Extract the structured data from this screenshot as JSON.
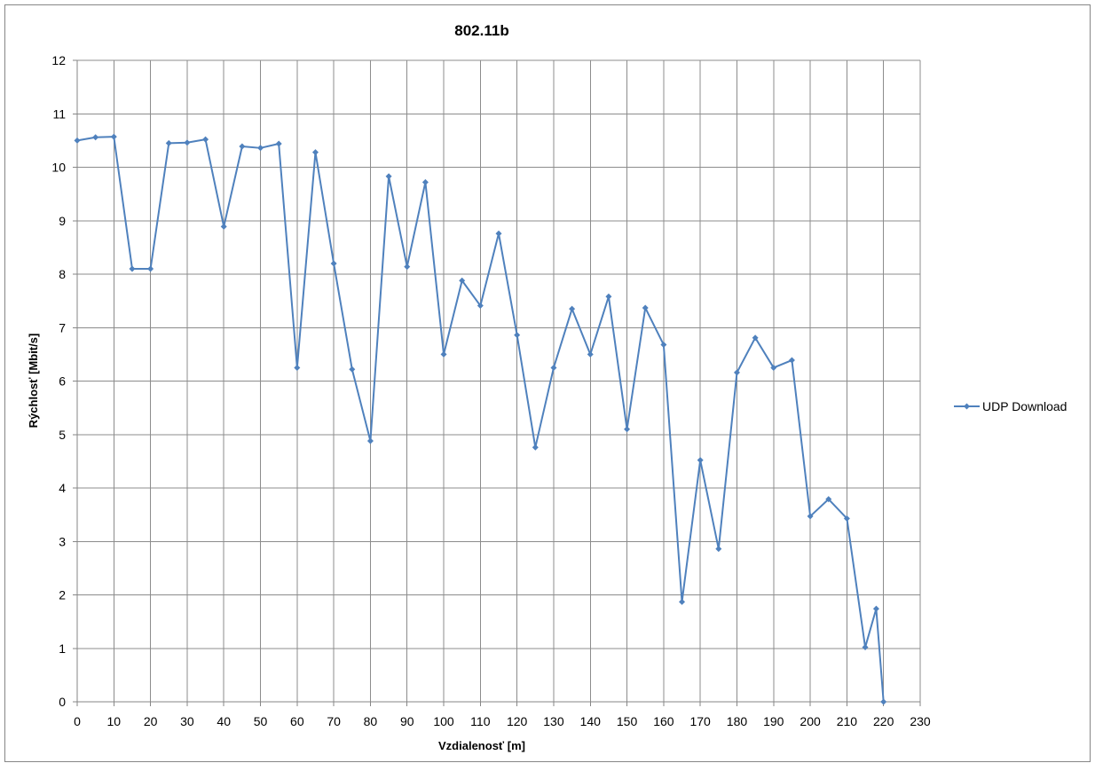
{
  "chart_data": {
    "type": "line",
    "title": "802.11b",
    "xlabel": "Vzdialenosť [m]",
    "ylabel": "Rýchlosť [Mbit/s]",
    "xlim": [
      0,
      230
    ],
    "ylim": [
      0,
      12
    ],
    "x_ticks": [
      "0",
      "10",
      "20",
      "30",
      "40",
      "50",
      "60",
      "70",
      "80",
      "90",
      "100",
      "110",
      "120",
      "130",
      "140",
      "150",
      "160",
      "170",
      "180",
      "190",
      "200",
      "210",
      "220",
      "230"
    ],
    "y_ticks": [
      "0",
      "1",
      "2",
      "3",
      "4",
      "5",
      "6",
      "7",
      "8",
      "9",
      "10",
      "11",
      "12"
    ],
    "grid": true,
    "legend_position": "right",
    "series": [
      {
        "name": "UDP Download",
        "color": "#4f81bd",
        "marker": "diamond",
        "x": [
          0,
          5,
          10,
          15,
          20,
          25,
          30,
          35,
          40,
          45,
          50,
          55,
          60,
          65,
          70,
          75,
          80,
          85,
          90,
          95,
          100,
          105,
          110,
          115,
          120,
          125,
          130,
          135,
          140,
          145,
          150,
          155,
          160,
          165,
          170,
          175,
          180,
          185,
          190,
          195,
          200,
          205,
          210,
          215,
          218,
          220
        ],
        "y": [
          10.5,
          10.56,
          10.57,
          8.1,
          8.1,
          10.45,
          10.46,
          10.52,
          8.89,
          10.39,
          10.36,
          10.44,
          6.25,
          10.28,
          8.2,
          6.22,
          4.88,
          9.83,
          8.14,
          9.72,
          6.5,
          7.88,
          7.41,
          8.76,
          6.86,
          4.76,
          6.25,
          7.35,
          6.5,
          7.58,
          5.1,
          7.37,
          6.68,
          1.87,
          4.52,
          2.86,
          6.16,
          6.81,
          6.25,
          6.39,
          3.47,
          3.79,
          3.43,
          1.02,
          1.74,
          0.0
        ]
      }
    ]
  }
}
